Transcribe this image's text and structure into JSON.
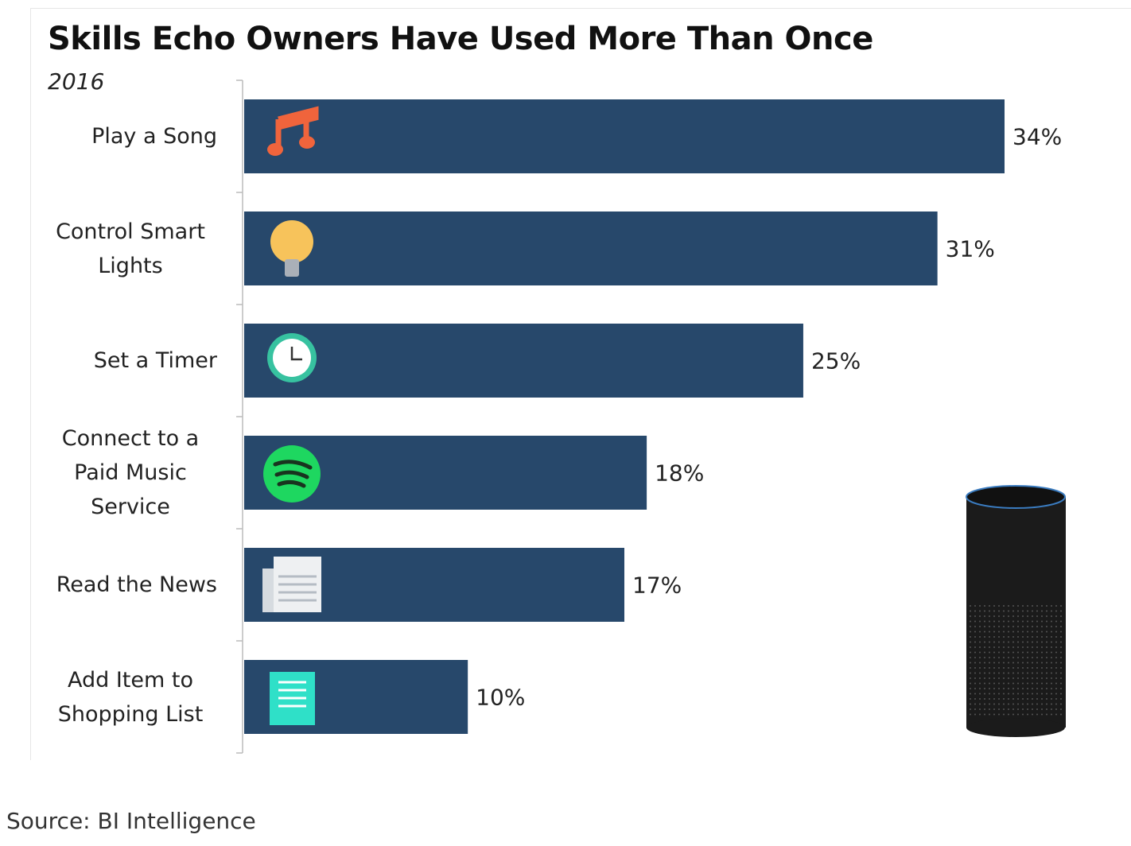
{
  "chart_data": {
    "type": "bar",
    "orientation": "horizontal",
    "title": "Skills Echo Owners Have Used More Than Once",
    "subtitle": "2016",
    "categories": [
      "Play a Song",
      "Control Smart Lights",
      "Set a Timer",
      "Connect to a Paid Music Service",
      "Read the News",
      "Add Item to Shopping List"
    ],
    "values": [
      34,
      31,
      25,
      18,
      17,
      10
    ],
    "value_labels": [
      "34%",
      "31%",
      "25%",
      "18%",
      "17%",
      "10%"
    ],
    "color": "#27486b"
  },
  "source": "Source: BI Intelligence"
}
